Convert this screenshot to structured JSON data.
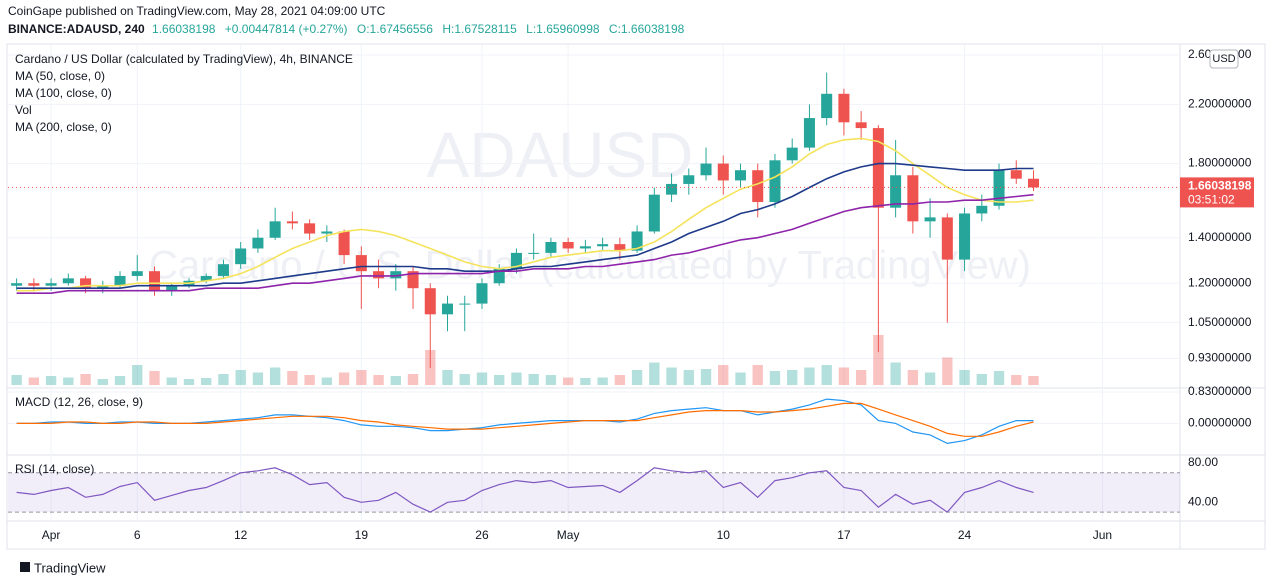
{
  "header": {
    "publisher": "CoinGape published on TradingView.com, May 28, 2021 04:09:00 UTC",
    "symbol": "BINANCE:ADAUSD, 240",
    "change": "+0.00447814 (+0.27%)",
    "ohlc": [
      "O:1.67456556",
      "H:1.67528115",
      "L:1.65960998",
      "C:1.66038198"
    ]
  },
  "chart_data": {
    "type": "candlestick",
    "log": true,
    "grid": true,
    "title": "Cardano / US Dollar (calculated by TradingView), 4h, BINANCE",
    "watermark": "ADAUSD",
    "watermark_subtitle": "Cardano / U.S. Dollar (calculated by TradingView)",
    "currency": "USD",
    "last_price": 1.66038198,
    "countdown": "03:51:02",
    "up_color": "#26a69a",
    "down_color": "#ef5350",
    "categories": [
      null,
      null,
      "Apr",
      null,
      null,
      null,
      null,
      "6",
      null,
      null,
      null,
      null,
      null,
      "12",
      null,
      null,
      null,
      null,
      null,
      null,
      "19",
      null,
      null,
      null,
      null,
      null,
      null,
      "26",
      null,
      null,
      null,
      null,
      "May",
      null,
      null,
      null,
      null,
      null,
      null,
      null,
      null,
      "10",
      null,
      null,
      null,
      null,
      null,
      null,
      "17",
      null,
      null,
      null,
      null,
      null,
      null,
      "24",
      null,
      null,
      null,
      null,
      null,
      null,
      null,
      "Jun",
      null,
      null,
      null,
      null
    ],
    "open": [
      1.19,
      1.2,
      1.19,
      1.2,
      1.22,
      1.18,
      1.19,
      1.23,
      1.25,
      1.17,
      1.19,
      1.21,
      1.23,
      1.28,
      1.35,
      1.4,
      1.48,
      1.47,
      1.42,
      1.43,
      1.32,
      1.25,
      1.22,
      1.25,
      1.18,
      1.08,
      1.12,
      1.12,
      1.2,
      1.26,
      1.33,
      1.33,
      1.38,
      1.35,
      1.36,
      1.37,
      1.34,
      1.43,
      1.62,
      1.68,
      1.73,
      1.8,
      1.7,
      1.76,
      1.58,
      1.82,
      1.9,
      2.1,
      2.28,
      2.07,
      2.03,
      1.55,
      1.73,
      1.48,
      1.5,
      1.3,
      1.52,
      1.56,
      1.76,
      1.71,
      null,
      null,
      null,
      null,
      null,
      null,
      null,
      null
    ],
    "high": [
      1.22,
      1.22,
      1.22,
      1.24,
      1.23,
      1.21,
      1.25,
      1.32,
      1.27,
      1.2,
      1.22,
      1.24,
      1.3,
      1.38,
      1.44,
      1.55,
      1.53,
      1.49,
      1.46,
      1.44,
      1.36,
      1.3,
      1.28,
      1.27,
      1.2,
      1.15,
      1.15,
      1.22,
      1.28,
      1.35,
      1.42,
      1.4,
      1.4,
      1.39,
      1.4,
      1.4,
      1.46,
      1.66,
      1.74,
      1.77,
      1.9,
      1.85,
      1.8,
      1.8,
      1.86,
      1.96,
      2.2,
      2.45,
      2.32,
      2.15,
      2.05,
      1.95,
      1.78,
      1.6,
      1.52,
      1.55,
      1.62,
      1.8,
      1.82,
      1.76,
      null,
      null,
      null,
      null,
      null,
      null,
      null,
      null
    ],
    "low": [
      1.17,
      1.17,
      1.17,
      1.19,
      1.16,
      1.16,
      1.18,
      1.21,
      1.15,
      1.15,
      1.18,
      1.2,
      1.22,
      1.26,
      1.33,
      1.39,
      1.44,
      1.39,
      1.38,
      1.28,
      1.1,
      1.18,
      1.17,
      1.1,
      0.9,
      1.02,
      1.02,
      1.1,
      1.19,
      1.24,
      1.3,
      1.31,
      1.33,
      1.33,
      1.34,
      1.3,
      1.33,
      1.42,
      1.58,
      1.62,
      1.7,
      1.62,
      1.66,
      1.5,
      1.55,
      1.8,
      1.88,
      2.05,
      1.98,
      1.95,
      0.95,
      1.5,
      1.42,
      1.4,
      1.05,
      1.25,
      1.48,
      1.54,
      1.68,
      1.64,
      null,
      null,
      null,
      null,
      null,
      null,
      null,
      null
    ],
    "close": [
      1.2,
      1.19,
      1.2,
      1.22,
      1.18,
      1.19,
      1.23,
      1.25,
      1.17,
      1.19,
      1.21,
      1.23,
      1.28,
      1.35,
      1.4,
      1.48,
      1.47,
      1.42,
      1.43,
      1.32,
      1.25,
      1.22,
      1.25,
      1.18,
      1.08,
      1.12,
      1.12,
      1.2,
      1.26,
      1.33,
      1.33,
      1.38,
      1.35,
      1.36,
      1.37,
      1.34,
      1.43,
      1.62,
      1.68,
      1.73,
      1.8,
      1.7,
      1.76,
      1.58,
      1.82,
      1.9,
      2.1,
      2.28,
      2.07,
      2.03,
      1.55,
      1.73,
      1.48,
      1.5,
      1.3,
      1.52,
      1.56,
      1.76,
      1.71,
      1.66,
      null,
      null,
      null,
      null,
      null,
      null,
      null,
      null
    ],
    "ma": [
      {
        "name": "MA (50, close, 0)",
        "color": "#f5e35b",
        "values": [
          1.17,
          1.17,
          1.18,
          1.18,
          1.19,
          1.19,
          1.19,
          1.2,
          1.2,
          1.2,
          1.2,
          1.21,
          1.22,
          1.24,
          1.27,
          1.31,
          1.35,
          1.38,
          1.41,
          1.43,
          1.44,
          1.43,
          1.41,
          1.38,
          1.35,
          1.32,
          1.29,
          1.27,
          1.26,
          1.27,
          1.29,
          1.31,
          1.32,
          1.33,
          1.34,
          1.34,
          1.35,
          1.38,
          1.43,
          1.49,
          1.55,
          1.6,
          1.65,
          1.68,
          1.72,
          1.78,
          1.86,
          1.92,
          1.95,
          1.96,
          1.94,
          1.88,
          1.8,
          1.73,
          1.66,
          1.62,
          1.59,
          1.58,
          1.58,
          1.59,
          null,
          null,
          null,
          null,
          null,
          null,
          null,
          null
        ]
      },
      {
        "name": "MA (100, close, 0)",
        "color": "#1e3a8a",
        "values": [
          1.18,
          1.18,
          1.18,
          1.18,
          1.18,
          1.18,
          1.18,
          1.19,
          1.19,
          1.19,
          1.19,
          1.19,
          1.2,
          1.2,
          1.21,
          1.22,
          1.23,
          1.24,
          1.25,
          1.26,
          1.27,
          1.27,
          1.27,
          1.27,
          1.26,
          1.26,
          1.25,
          1.25,
          1.25,
          1.26,
          1.27,
          1.27,
          1.28,
          1.29,
          1.3,
          1.31,
          1.32,
          1.35,
          1.38,
          1.42,
          1.45,
          1.48,
          1.52,
          1.54,
          1.57,
          1.61,
          1.66,
          1.71,
          1.75,
          1.78,
          1.8,
          1.8,
          1.79,
          1.78,
          1.77,
          1.76,
          1.76,
          1.76,
          1.77,
          1.77,
          null,
          null,
          null,
          null,
          null,
          null,
          null,
          null
        ]
      },
      {
        "name": "MA (200, close, 0)",
        "color": "#8e24aa",
        "values": [
          1.16,
          1.16,
          1.16,
          1.17,
          1.17,
          1.17,
          1.17,
          1.17,
          1.17,
          1.17,
          1.17,
          1.18,
          1.18,
          1.18,
          1.18,
          1.19,
          1.2,
          1.2,
          1.21,
          1.22,
          1.23,
          1.23,
          1.23,
          1.24,
          1.24,
          1.24,
          1.24,
          1.24,
          1.25,
          1.25,
          1.26,
          1.26,
          1.26,
          1.27,
          1.27,
          1.28,
          1.29,
          1.3,
          1.32,
          1.33,
          1.35,
          1.37,
          1.39,
          1.4,
          1.42,
          1.44,
          1.47,
          1.5,
          1.53,
          1.55,
          1.56,
          1.57,
          1.57,
          1.58,
          1.58,
          1.59,
          1.59,
          1.6,
          1.61,
          1.62,
          null,
          null,
          null,
          null,
          null,
          null,
          null,
          null
        ]
      }
    ],
    "volume": {
      "name": "Vol",
      "ylim": [
        0,
        130
      ],
      "values": [
        20,
        15,
        18,
        15,
        22,
        12,
        18,
        40,
        28,
        15,
        12,
        14,
        22,
        30,
        25,
        35,
        28,
        20,
        15,
        25,
        30,
        20,
        18,
        22,
        70,
        30,
        22,
        25,
        20,
        25,
        22,
        20,
        15,
        14,
        15,
        20,
        30,
        45,
        35,
        30,
        32,
        40,
        25,
        40,
        28,
        30,
        35,
        40,
        35,
        30,
        100,
        45,
        30,
        25,
        55,
        30,
        22,
        28,
        20,
        18,
        null,
        null,
        null,
        null,
        null,
        null,
        null,
        null
      ]
    },
    "ylim": [
      0.85,
      2.69
    ],
    "yticks": [
      {
        "value": 2.6,
        "label": "2.60000000"
      },
      {
        "value": 2.2,
        "label": "2.20000000"
      },
      {
        "value": 1.8,
        "label": "1.80000000"
      },
      {
        "value": 1.4,
        "label": "1.40000000"
      },
      {
        "value": 1.2,
        "label": "1.20000000"
      },
      {
        "value": 1.05,
        "label": "1.05000000"
      },
      {
        "value": 0.93,
        "label": "0.93000000"
      },
      {
        "value": 0.83,
        "label": "0.83000000"
      }
    ],
    "macd": {
      "title": "MACD (12, 26, close, 9)",
      "ylim": [
        -0.2,
        0.22
      ],
      "yticks": [
        {
          "value": 0,
          "label": "0.00000000"
        }
      ],
      "lines": [
        {
          "color": "#2196f3",
          "values": [
            0.0,
            0.0,
            0.01,
            0.01,
            0.0,
            0.0,
            0.01,
            0.01,
            0.0,
            0.0,
            0.0,
            0.01,
            0.02,
            0.03,
            0.04,
            0.06,
            0.06,
            0.05,
            0.04,
            0.02,
            -0.01,
            -0.02,
            -0.02,
            -0.03,
            -0.05,
            -0.05,
            -0.04,
            -0.03,
            -0.01,
            0.0,
            0.01,
            0.02,
            0.02,
            0.02,
            0.02,
            0.01,
            0.03,
            0.07,
            0.09,
            0.1,
            0.11,
            0.09,
            0.09,
            0.06,
            0.08,
            0.1,
            0.13,
            0.17,
            0.16,
            0.13,
            0.02,
            0.0,
            -0.06,
            -0.08,
            -0.14,
            -0.12,
            -0.08,
            -0.02,
            0.02,
            0.02,
            null,
            null,
            null,
            null,
            null,
            null,
            null,
            null
          ]
        },
        {
          "color": "#ff6d00",
          "values": [
            0.0,
            0.0,
            0.0,
            0.01,
            0.01,
            0.0,
            0.0,
            0.01,
            0.01,
            0.0,
            0.0,
            0.0,
            0.01,
            0.02,
            0.03,
            0.04,
            0.05,
            0.05,
            0.05,
            0.04,
            0.02,
            0.01,
            -0.01,
            -0.02,
            -0.03,
            -0.04,
            -0.04,
            -0.04,
            -0.03,
            -0.02,
            -0.01,
            0.0,
            0.01,
            0.02,
            0.02,
            0.02,
            0.02,
            0.04,
            0.06,
            0.08,
            0.09,
            0.09,
            0.09,
            0.08,
            0.08,
            0.09,
            0.1,
            0.12,
            0.14,
            0.14,
            0.1,
            0.06,
            0.02,
            -0.02,
            -0.07,
            -0.09,
            -0.09,
            -0.06,
            -0.02,
            0.01,
            null,
            null,
            null,
            null,
            null,
            null,
            null,
            null
          ]
        }
      ]
    },
    "rsi": {
      "title": "RSI (14, close)",
      "color": "#7e57c2",
      "ylim": [
        24,
        85
      ],
      "bands": [
        30,
        70
      ],
      "yticks": [
        {
          "value": 80,
          "label": "80.00"
        },
        {
          "value": 40,
          "label": "40.00"
        }
      ],
      "values": [
        50,
        48,
        52,
        55,
        45,
        48,
        56,
        60,
        42,
        47,
        52,
        55,
        62,
        70,
        72,
        75,
        68,
        58,
        60,
        45,
        40,
        42,
        50,
        38,
        30,
        40,
        42,
        52,
        58,
        62,
        60,
        62,
        55,
        56,
        57,
        50,
        62,
        75,
        72,
        70,
        72,
        55,
        60,
        45,
        62,
        65,
        70,
        72,
        55,
        52,
        35,
        48,
        38,
        42,
        30,
        50,
        55,
        62,
        55,
        50,
        null,
        null,
        null,
        null,
        null,
        null,
        null,
        null
      ]
    },
    "footer": "TradingView"
  }
}
